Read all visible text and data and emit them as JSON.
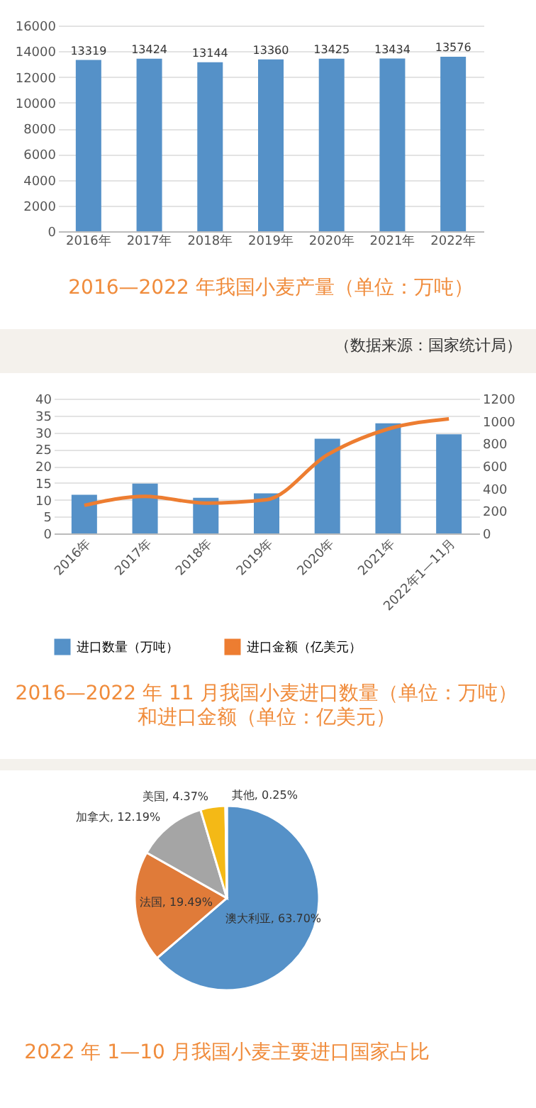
{
  "chart_data": [
    {
      "type": "bar",
      "title": "2016—2022 年我国小麦产量（单位：万吨）",
      "categories": [
        "2016年",
        "2017年",
        "2018年",
        "2019年",
        "2020年",
        "2021年",
        "2022年"
      ],
      "series": [
        {
          "color": "#5591c8",
          "values": [
            13319,
            13424,
            13144,
            13360,
            13425,
            13434,
            13576
          ]
        }
      ],
      "ylim": [
        0,
        16000
      ],
      "yticks": [
        0,
        2000,
        4000,
        6000,
        8000,
        10000,
        12000,
        14000,
        16000
      ],
      "grid": "y",
      "data_labels": true,
      "annotations": [
        "（数据来源：国家统计局）"
      ]
    },
    {
      "type": "bar",
      "title": "2016—2022 年 11 月我国小麦进口数量（单位：万吨）",
      "subtitle": "和进口金额（单位：亿美元）",
      "categories": [
        "2016年",
        "2017年",
        "2018年",
        "2019年",
        "2020年",
        "2021年",
        "2022年1—11月"
      ],
      "series": [
        {
          "name": "进口数量（万吨）",
          "color": "#5591c8",
          "values": [
            11.5,
            14.8,
            10.6,
            11.9,
            28.1,
            32.7,
            29.4
          ]
        },
        {
          "name": "进口金额（亿美元）",
          "type": "line",
          "axis": "y2",
          "color": "#ed7d31",
          "values": [
            250,
            330,
            270,
            300,
            700,
            930,
            1020
          ]
        }
      ],
      "ylim": [
        0,
        40
      ],
      "yticks": [
        0,
        5,
        10,
        15,
        20,
        25,
        30,
        35,
        40
      ],
      "y2lim": [
        0,
        1200
      ],
      "y2ticks": [
        0,
        200,
        400,
        600,
        800,
        1000,
        1200
      ],
      "grid": "y",
      "legend": "bottom"
    },
    {
      "type": "pie",
      "title": "2022 年 1—10 月我国小麦主要进口国家占比",
      "categories": [
        "澳大利亚",
        "法国",
        "加拿大",
        "美国",
        "其他"
      ],
      "values": [
        63.7,
        19.49,
        12.19,
        4.37,
        0.25
      ],
      "value_labels": [
        "63.70%",
        "19.49%",
        "12.19%",
        "4.37%",
        "0.25%"
      ],
      "colors": [
        "#5591c8",
        "#e07b39",
        "#a5a5a5",
        "#f4b916",
        "#4472c4"
      ]
    }
  ]
}
